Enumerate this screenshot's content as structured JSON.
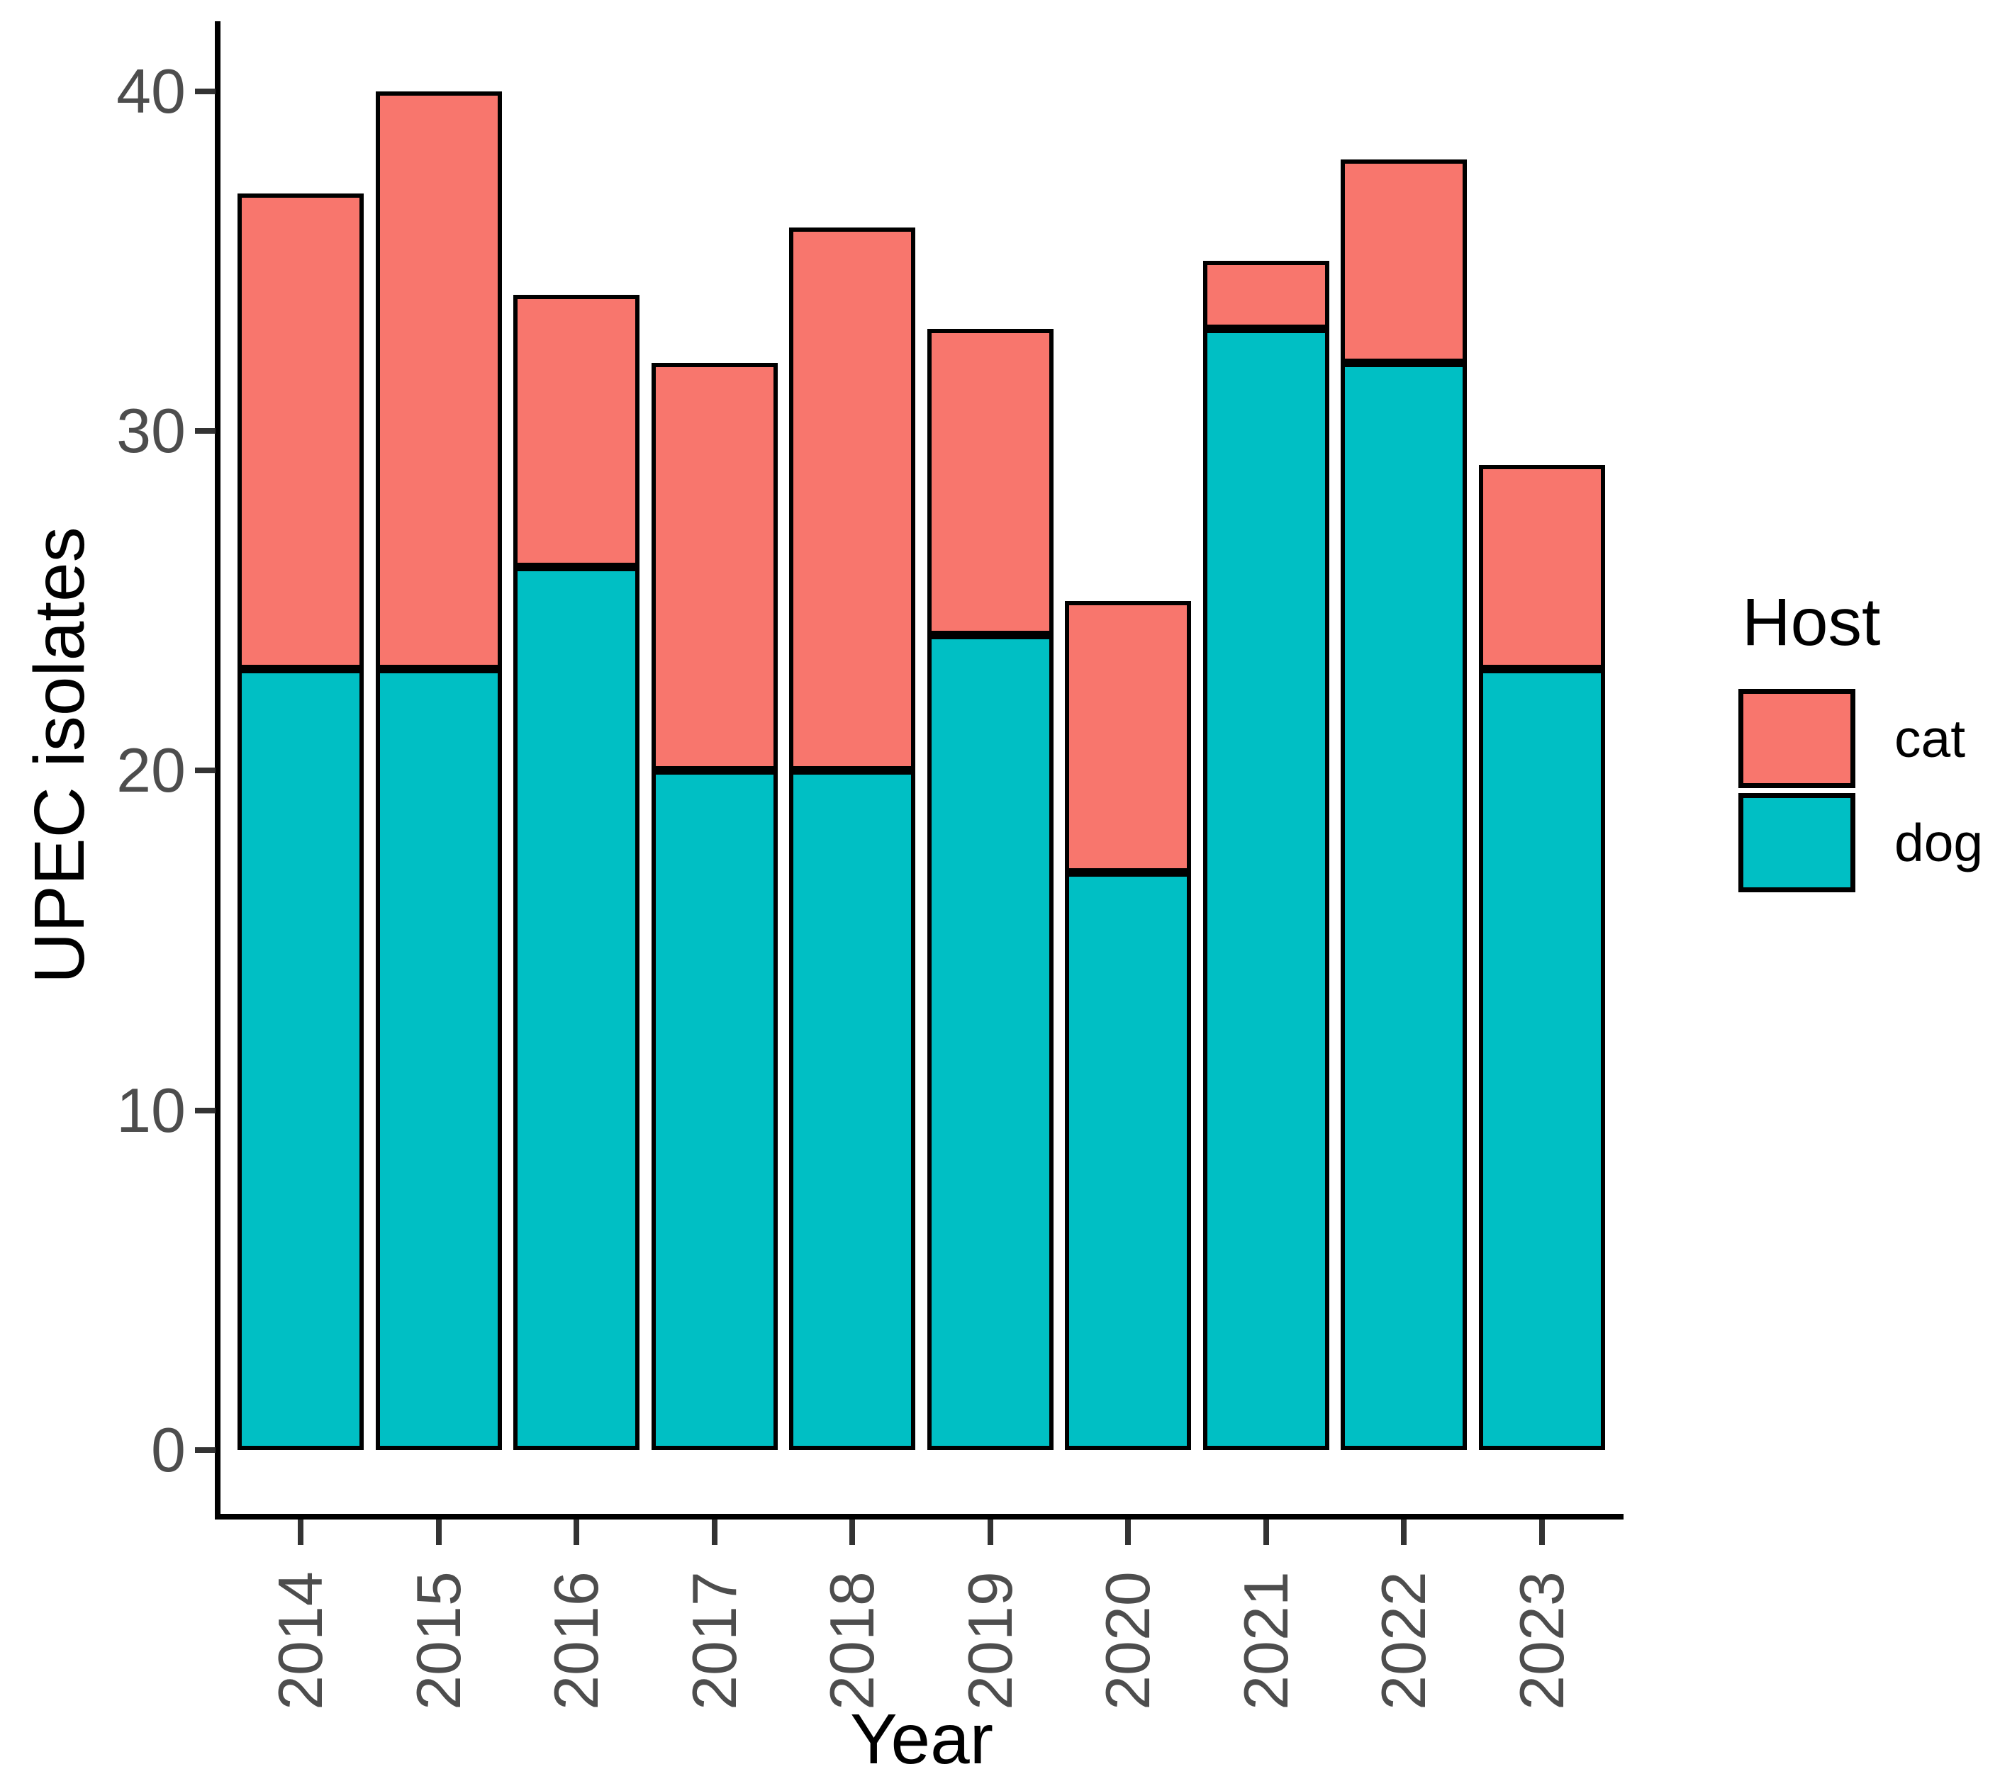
{
  "chart_data": {
    "type": "bar",
    "stacked": true,
    "title": "",
    "xlabel": "Year",
    "ylabel": "UPEC isolates",
    "categories": [
      "2014",
      "2015",
      "2016",
      "2017",
      "2018",
      "2019",
      "2020",
      "2021",
      "2022",
      "2023"
    ],
    "series": [
      {
        "name": "cat",
        "color": "#F8766D",
        "values": [
          14,
          17,
          8,
          12,
          16,
          9,
          8,
          2,
          6,
          6
        ]
      },
      {
        "name": "dog",
        "color": "#00BFC4",
        "values": [
          23,
          23,
          26,
          20,
          20,
          24,
          17,
          33,
          32,
          23
        ]
      }
    ],
    "stack_order_bottom_to_top": [
      "dog",
      "cat"
    ],
    "ylim": [
      0,
      40
    ],
    "yticks": [
      0,
      10,
      20,
      30,
      40
    ],
    "grid": false,
    "legend": {
      "title": "Host",
      "position": "right",
      "entries": [
        "cat",
        "dog"
      ]
    },
    "style_colors": {
      "axis_line": "#000000",
      "tick_mark": "#333333",
      "tick_label": "#4d4d4d",
      "title_text": "#000000",
      "bar_outline": "#000000",
      "background": "#ffffff"
    }
  }
}
